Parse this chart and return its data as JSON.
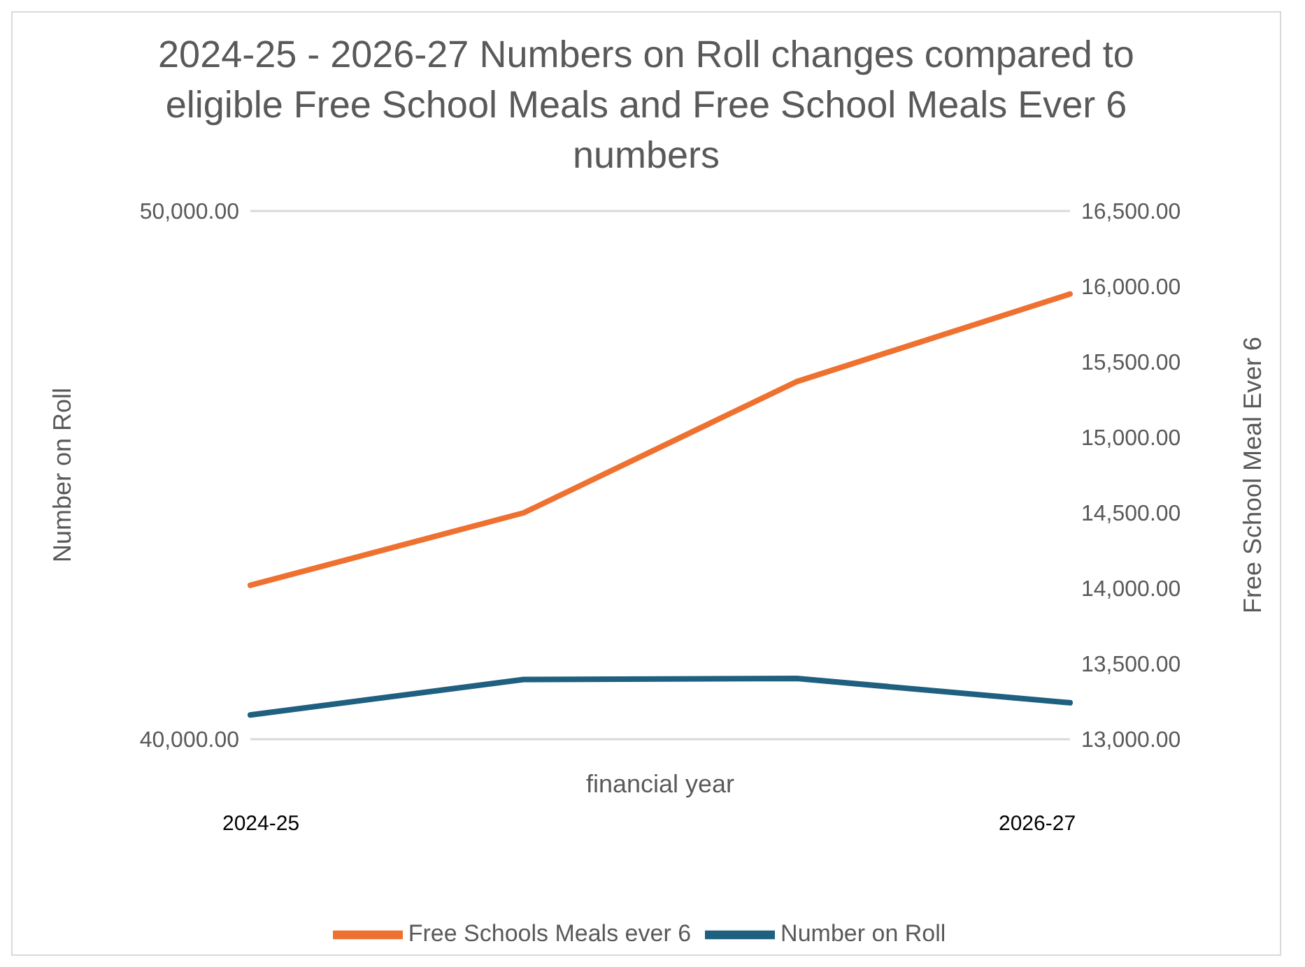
{
  "chart_data": {
    "type": "line",
    "title": "2024-25 - 2026-27 Numbers on Roll changes compared to eligible Free School Meals  and Free School Meals Ever 6 numbers",
    "xlabel": "financial year",
    "ylabel": "Number on Roll",
    "y2label": "Free School Meal Ever 6",
    "categories": [
      null,
      null,
      null,
      null
    ],
    "series": [
      {
        "name": "Number on Roll",
        "color": "#1f5f7f",
        "values": [
          40460,
          41130,
          41150,
          40690
        ]
      },
      {
        "name": "Free Schools Meals ever 6",
        "color": "#ee7130",
        "axis": "y2",
        "values": [
          14020,
          14500,
          15370,
          15950
        ]
      }
    ],
    "ylim": [
      40000,
      50000
    ],
    "yticks": [
      {
        "value": 40000,
        "label": "40,000.00"
      },
      {
        "value": 50000,
        "label": "50,000.00"
      }
    ],
    "y2lim": [
      13000,
      16500
    ],
    "y2ticks": [
      {
        "value": 13000,
        "label": "13,000.00"
      },
      {
        "value": 13500,
        "label": "13,500.00"
      },
      {
        "value": 14000,
        "label": "14,000.00"
      },
      {
        "value": 14500,
        "label": "14,500.00"
      },
      {
        "value": 15000,
        "label": "15,000.00"
      },
      {
        "value": 15500,
        "label": "15,500.00"
      },
      {
        "value": 16000,
        "label": "16,000.00"
      },
      {
        "value": 16500,
        "label": "16,500.00"
      }
    ],
    "grid": "y",
    "legend": "bottom",
    "marker": "none",
    "line_style": "solid",
    "annotations": [
      "2024-25",
      "2026-27"
    ]
  }
}
